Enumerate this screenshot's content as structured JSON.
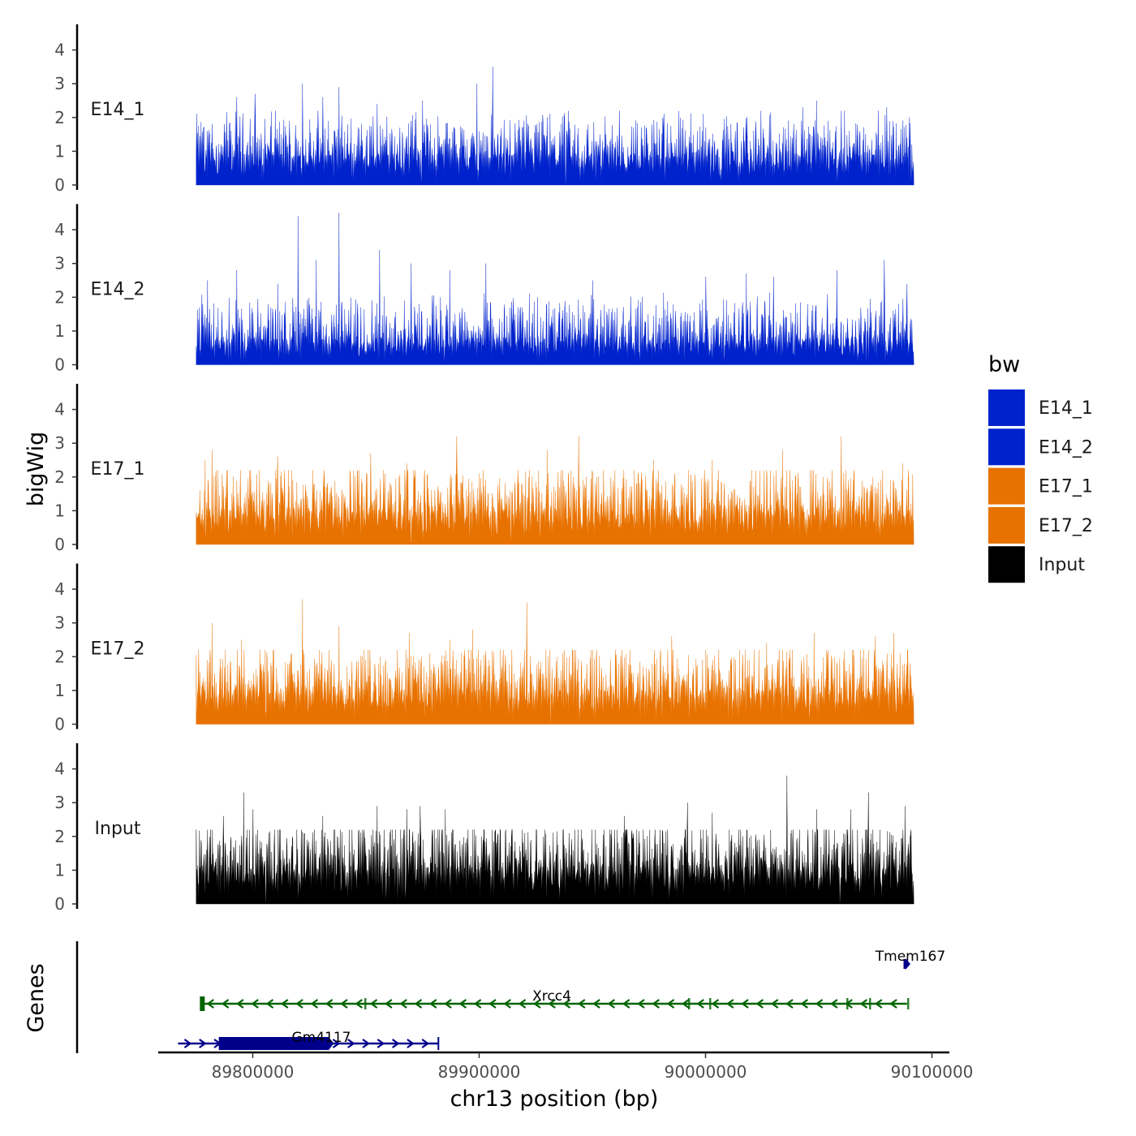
{
  "chart_data": {
    "type": "area",
    "ylabel": "bigWig",
    "xlabel": "chr13 position (bp)",
    "xlim": [
      89770000,
      90100000
    ],
    "ylim": [
      0,
      4.7
    ],
    "yticks": [
      0,
      1,
      2,
      3,
      4
    ],
    "xticks": [
      89800000,
      89900000,
      90000000,
      90100000
    ],
    "xtick_labels": [
      "89800000",
      "89900000",
      "90000000",
      "90100000"
    ],
    "tracks": [
      {
        "name": "E14_1",
        "color": "#0022CC",
        "peaks": [
          {
            "x": 89778000,
            "y": 1.7
          },
          {
            "x": 89782000,
            "y": 1.8
          },
          {
            "x": 89793000,
            "y": 2.6
          },
          {
            "x": 89801000,
            "y": 2.7
          },
          {
            "x": 89822000,
            "y": 3.0
          },
          {
            "x": 89831000,
            "y": 2.6
          },
          {
            "x": 89838000,
            "y": 2.9
          },
          {
            "x": 89855000,
            "y": 2.4
          },
          {
            "x": 89875000,
            "y": 2.5
          },
          {
            "x": 89899000,
            "y": 3.0
          },
          {
            "x": 89906000,
            "y": 3.5
          },
          {
            "x": 89930000,
            "y": 2.0
          },
          {
            "x": 89962000,
            "y": 2.2
          },
          {
            "x": 89999000,
            "y": 2.1
          },
          {
            "x": 90043000,
            "y": 2.3
          },
          {
            "x": 90049000,
            "y": 2.5
          },
          {
            "x": 90080000,
            "y": 2.3
          },
          {
            "x": 90090000,
            "y": 2.0
          }
        ],
        "base": 0.7,
        "noise": 0.8
      },
      {
        "name": "E14_2",
        "color": "#0022CC",
        "peaks": [
          {
            "x": 89780000,
            "y": 2.5
          },
          {
            "x": 89793000,
            "y": 2.8
          },
          {
            "x": 89811000,
            "y": 2.4
          },
          {
            "x": 89820000,
            "y": 4.4
          },
          {
            "x": 89828000,
            "y": 3.1
          },
          {
            "x": 89838000,
            "y": 4.5
          },
          {
            "x": 89856000,
            "y": 3.4
          },
          {
            "x": 89870000,
            "y": 3.0
          },
          {
            "x": 89887000,
            "y": 2.8
          },
          {
            "x": 89903000,
            "y": 3.0
          },
          {
            "x": 89950000,
            "y": 2.5
          },
          {
            "x": 90000000,
            "y": 2.6
          },
          {
            "x": 90018000,
            "y": 2.7
          },
          {
            "x": 90030000,
            "y": 2.6
          },
          {
            "x": 90058000,
            "y": 2.8
          },
          {
            "x": 90079000,
            "y": 3.1
          },
          {
            "x": 90089000,
            "y": 2.4
          }
        ],
        "base": 0.6,
        "noise": 0.8
      },
      {
        "name": "E17_1",
        "color": "#E87200",
        "peaks": [
          {
            "x": 89779000,
            "y": 2.5
          },
          {
            "x": 89782000,
            "y": 2.8
          },
          {
            "x": 89811000,
            "y": 2.6
          },
          {
            "x": 89852000,
            "y": 2.7
          },
          {
            "x": 89868000,
            "y": 2.4
          },
          {
            "x": 89890000,
            "y": 3.2
          },
          {
            "x": 89930000,
            "y": 2.8
          },
          {
            "x": 89944000,
            "y": 3.2
          },
          {
            "x": 89977000,
            "y": 2.5
          },
          {
            "x": 90003000,
            "y": 2.5
          },
          {
            "x": 90034000,
            "y": 2.8
          },
          {
            "x": 90060000,
            "y": 3.2
          },
          {
            "x": 90087000,
            "y": 2.4
          }
        ],
        "base": 0.8,
        "noise": 0.9
      },
      {
        "name": "E17_2",
        "color": "#E87200",
        "peaks": [
          {
            "x": 89782000,
            "y": 3.0
          },
          {
            "x": 89795000,
            "y": 2.5
          },
          {
            "x": 89822000,
            "y": 3.7
          },
          {
            "x": 89838000,
            "y": 2.9
          },
          {
            "x": 89869000,
            "y": 2.7
          },
          {
            "x": 89887000,
            "y": 2.5
          },
          {
            "x": 89897000,
            "y": 2.8
          },
          {
            "x": 89921000,
            "y": 3.6
          },
          {
            "x": 89985000,
            "y": 2.6
          },
          {
            "x": 90027000,
            "y": 2.4
          },
          {
            "x": 90048000,
            "y": 2.7
          },
          {
            "x": 90075000,
            "y": 2.6
          },
          {
            "x": 90083000,
            "y": 2.7
          }
        ],
        "base": 0.8,
        "noise": 0.9
      },
      {
        "name": "Input",
        "color": "#000000",
        "peaks": [
          {
            "x": 89787000,
            "y": 2.6
          },
          {
            "x": 89796000,
            "y": 3.3
          },
          {
            "x": 89800000,
            "y": 2.8
          },
          {
            "x": 89831000,
            "y": 2.6
          },
          {
            "x": 89855000,
            "y": 2.9
          },
          {
            "x": 89868000,
            "y": 2.8
          },
          {
            "x": 89874000,
            "y": 2.9
          },
          {
            "x": 89885000,
            "y": 2.8
          },
          {
            "x": 89964000,
            "y": 2.6
          },
          {
            "x": 89992000,
            "y": 3.0
          },
          {
            "x": 90003000,
            "y": 2.7
          },
          {
            "x": 90036000,
            "y": 3.8
          },
          {
            "x": 90049000,
            "y": 2.8
          },
          {
            "x": 90064000,
            "y": 2.8
          },
          {
            "x": 90072000,
            "y": 3.3
          },
          {
            "x": 90088000,
            "y": 2.9
          }
        ],
        "base": 0.9,
        "noise": 1.0
      }
    ],
    "legend": {
      "title": "bw",
      "items": [
        {
          "label": "E14_1",
          "color": "#0022CC"
        },
        {
          "label": "E14_2",
          "color": "#0022CC"
        },
        {
          "label": "E17_1",
          "color": "#E87200"
        },
        {
          "label": "E17_2",
          "color": "#E87200"
        },
        {
          "label": "Input",
          "color": "#000000"
        }
      ]
    },
    "genes_label": "Genes",
    "genes": [
      {
        "name": "Tmem167",
        "start": 90089000,
        "end": 90090500,
        "strand": "+",
        "color": "#00008B",
        "row": 0
      },
      {
        "name": "Xrcc4",
        "start": 89777000,
        "end": 90089000,
        "strand": "-",
        "color": "#006400",
        "row": 1
      },
      {
        "name": "Gm4117",
        "start": 89767000,
        "end": 89882000,
        "strand": "+",
        "color": "#00008B",
        "row": 2,
        "block_start": 89785000,
        "block_end": 89835000
      }
    ]
  }
}
